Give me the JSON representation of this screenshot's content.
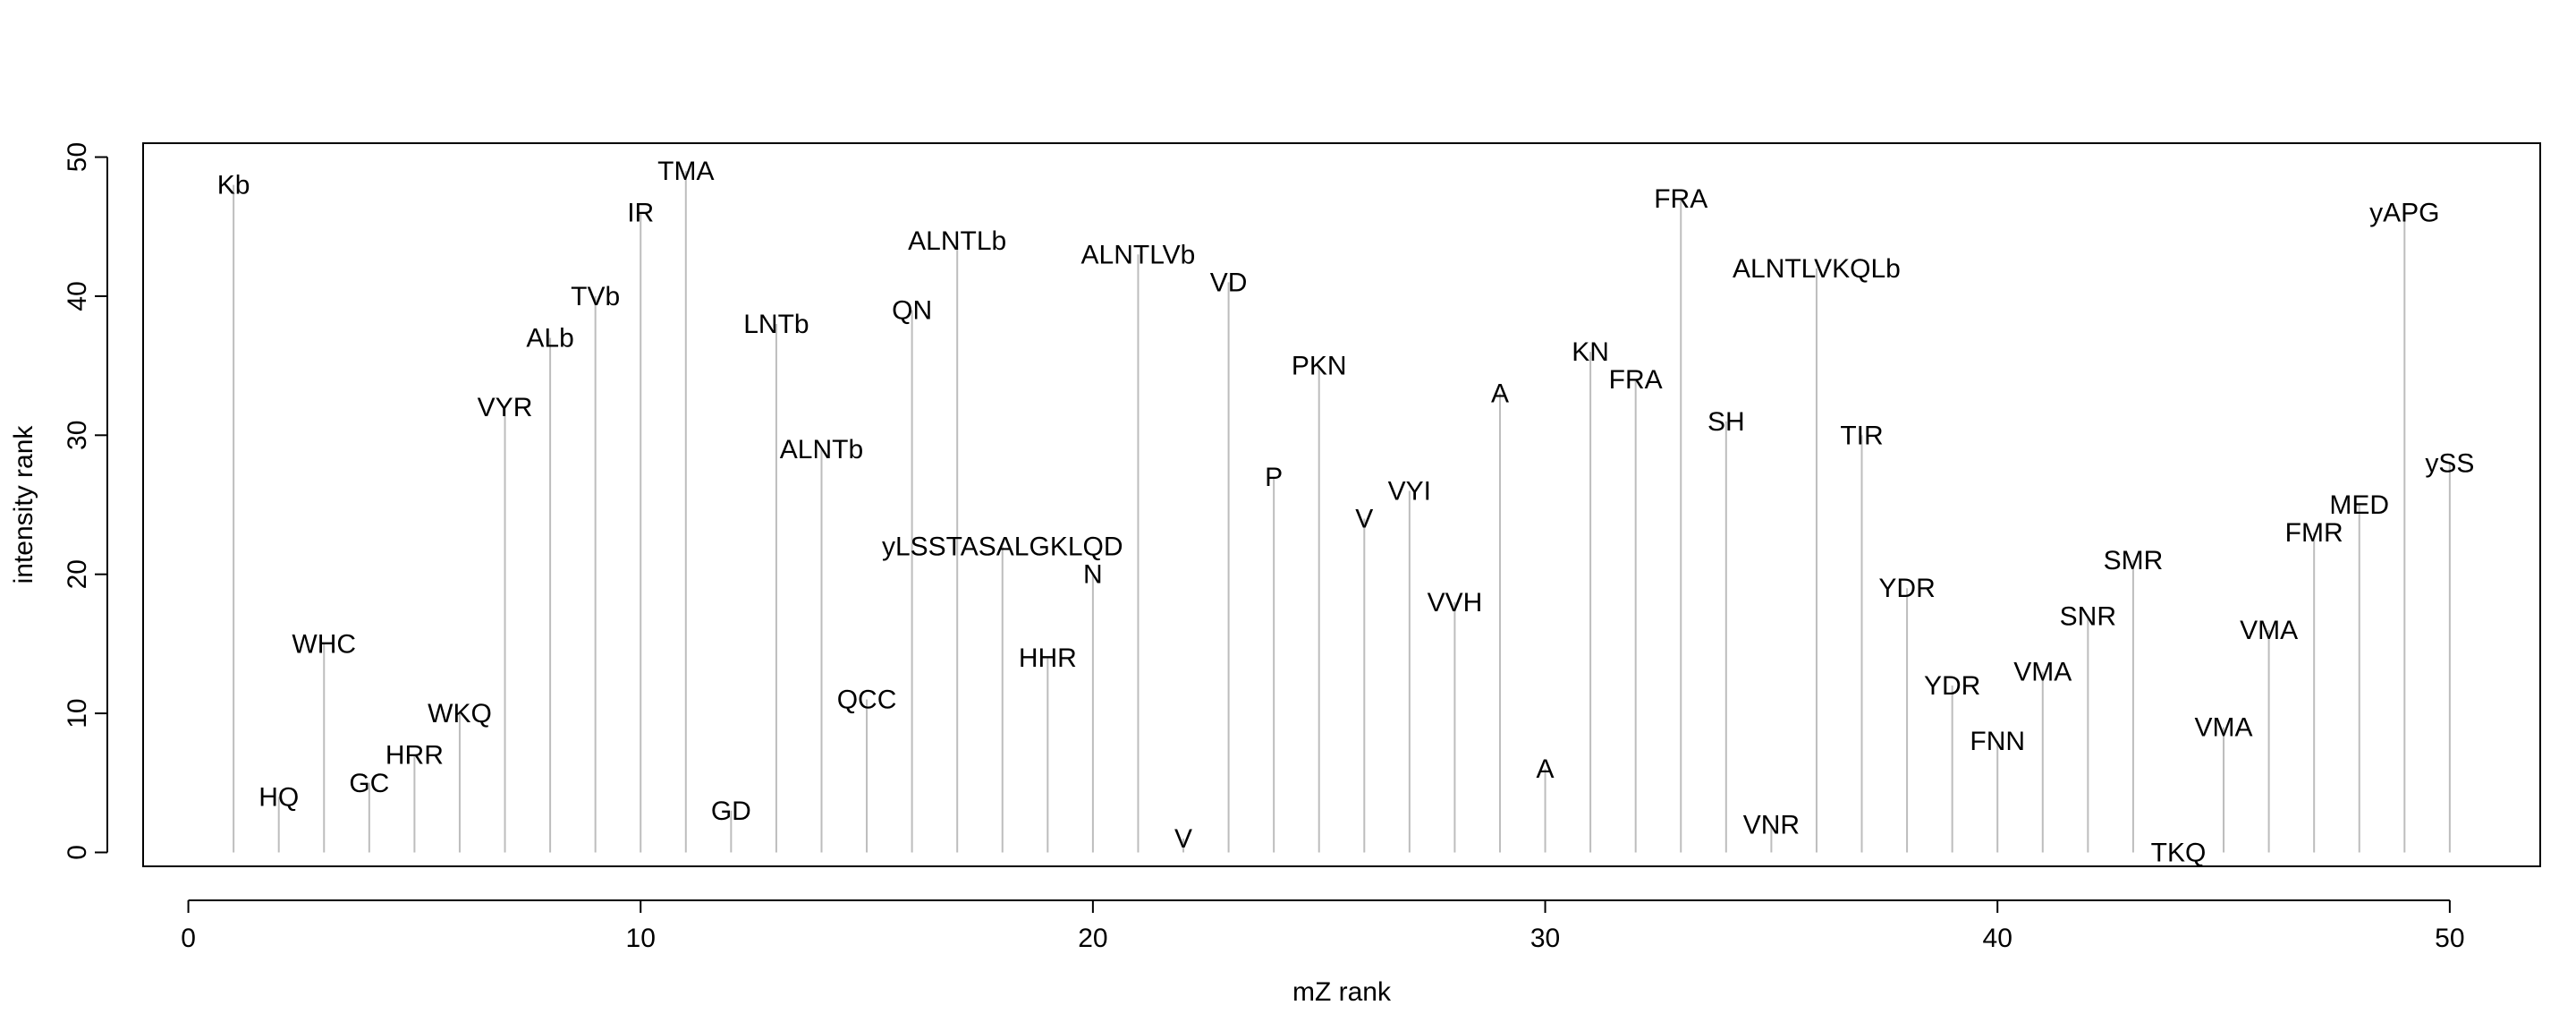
{
  "chart_data": {
    "type": "bar",
    "xlabel": "mZ rank",
    "ylabel": "intensity rank",
    "xlim": [
      -1,
      52
    ],
    "ylim": [
      -1,
      51
    ],
    "xticks": [
      0,
      10,
      20,
      30,
      40,
      50
    ],
    "yticks": [
      0,
      10,
      20,
      30,
      40,
      50
    ],
    "grid": false,
    "stem_color": "#bdbdbd",
    "points": [
      {
        "x": 1,
        "y": 48,
        "label": "Kb"
      },
      {
        "x": 2,
        "y": 4,
        "label": "HQ"
      },
      {
        "x": 3,
        "y": 15,
        "label": "WHC"
      },
      {
        "x": 4,
        "y": 5,
        "label": "GC"
      },
      {
        "x": 5,
        "y": 7,
        "label": "HRR"
      },
      {
        "x": 6,
        "y": 10,
        "label": "WKQ"
      },
      {
        "x": 7,
        "y": 32,
        "label": "VYR"
      },
      {
        "x": 8,
        "y": 37,
        "label": "ALb"
      },
      {
        "x": 9,
        "y": 40,
        "label": "TVb"
      },
      {
        "x": 10,
        "y": 46,
        "label": "IR"
      },
      {
        "x": 11,
        "y": 49,
        "label": "TMA"
      },
      {
        "x": 12,
        "y": 3,
        "label": "GD"
      },
      {
        "x": 13,
        "y": 38,
        "label": "LNTb"
      },
      {
        "x": 14,
        "y": 29,
        "label": "ALNTb"
      },
      {
        "x": 15,
        "y": 11,
        "label": "QCC"
      },
      {
        "x": 16,
        "y": 39,
        "label": "QN"
      },
      {
        "x": 17,
        "y": 44,
        "label": "ALNTLb"
      },
      {
        "x": 18,
        "y": 22,
        "label": "yLSSTASALGKLQD"
      },
      {
        "x": 19,
        "y": 14,
        "label": "HHR"
      },
      {
        "x": 20,
        "y": 20,
        "label": "N"
      },
      {
        "x": 21,
        "y": 43,
        "label": "ALNTLVb"
      },
      {
        "x": 22,
        "y": 1,
        "label": "V"
      },
      {
        "x": 23,
        "y": 41,
        "label": "VD"
      },
      {
        "x": 24,
        "y": 27,
        "label": "P"
      },
      {
        "x": 25,
        "y": 35,
        "label": "PKN"
      },
      {
        "x": 26,
        "y": 24,
        "label": "V"
      },
      {
        "x": 27,
        "y": 26,
        "label": "VYI"
      },
      {
        "x": 28,
        "y": 18,
        "label": "VVH"
      },
      {
        "x": 29,
        "y": 33,
        "label": "A"
      },
      {
        "x": 30,
        "y": 6,
        "label": "A"
      },
      {
        "x": 31,
        "y": 36,
        "label": "KN"
      },
      {
        "x": 32,
        "y": 34,
        "label": "FRA"
      },
      {
        "x": 33,
        "y": 47,
        "label": "FRA"
      },
      {
        "x": 34,
        "y": 31,
        "label": "SH"
      },
      {
        "x": 35,
        "y": 2,
        "label": "VNR"
      },
      {
        "x": 36,
        "y": 42,
        "label": "ALNTLVKQLb"
      },
      {
        "x": 37,
        "y": 30,
        "label": "TIR"
      },
      {
        "x": 38,
        "y": 19,
        "label": "YDR"
      },
      {
        "x": 39,
        "y": 12,
        "label": "YDR"
      },
      {
        "x": 40,
        "y": 8,
        "label": "FNN"
      },
      {
        "x": 41,
        "y": 13,
        "label": "VMA"
      },
      {
        "x": 42,
        "y": 17,
        "label": "SNR"
      },
      {
        "x": 43,
        "y": 21,
        "label": "SMR"
      },
      {
        "x": 44,
        "y": 0,
        "label": "TKQ"
      },
      {
        "x": 45,
        "y": 9,
        "label": "VMA"
      },
      {
        "x": 46,
        "y": 16,
        "label": "VMA"
      },
      {
        "x": 47,
        "y": 23,
        "label": "FMR"
      },
      {
        "x": 48,
        "y": 25,
        "label": "MED"
      },
      {
        "x": 49,
        "y": 46,
        "label": "yAPG"
      },
      {
        "x": 50,
        "y": 28,
        "label": "ySS"
      }
    ]
  }
}
